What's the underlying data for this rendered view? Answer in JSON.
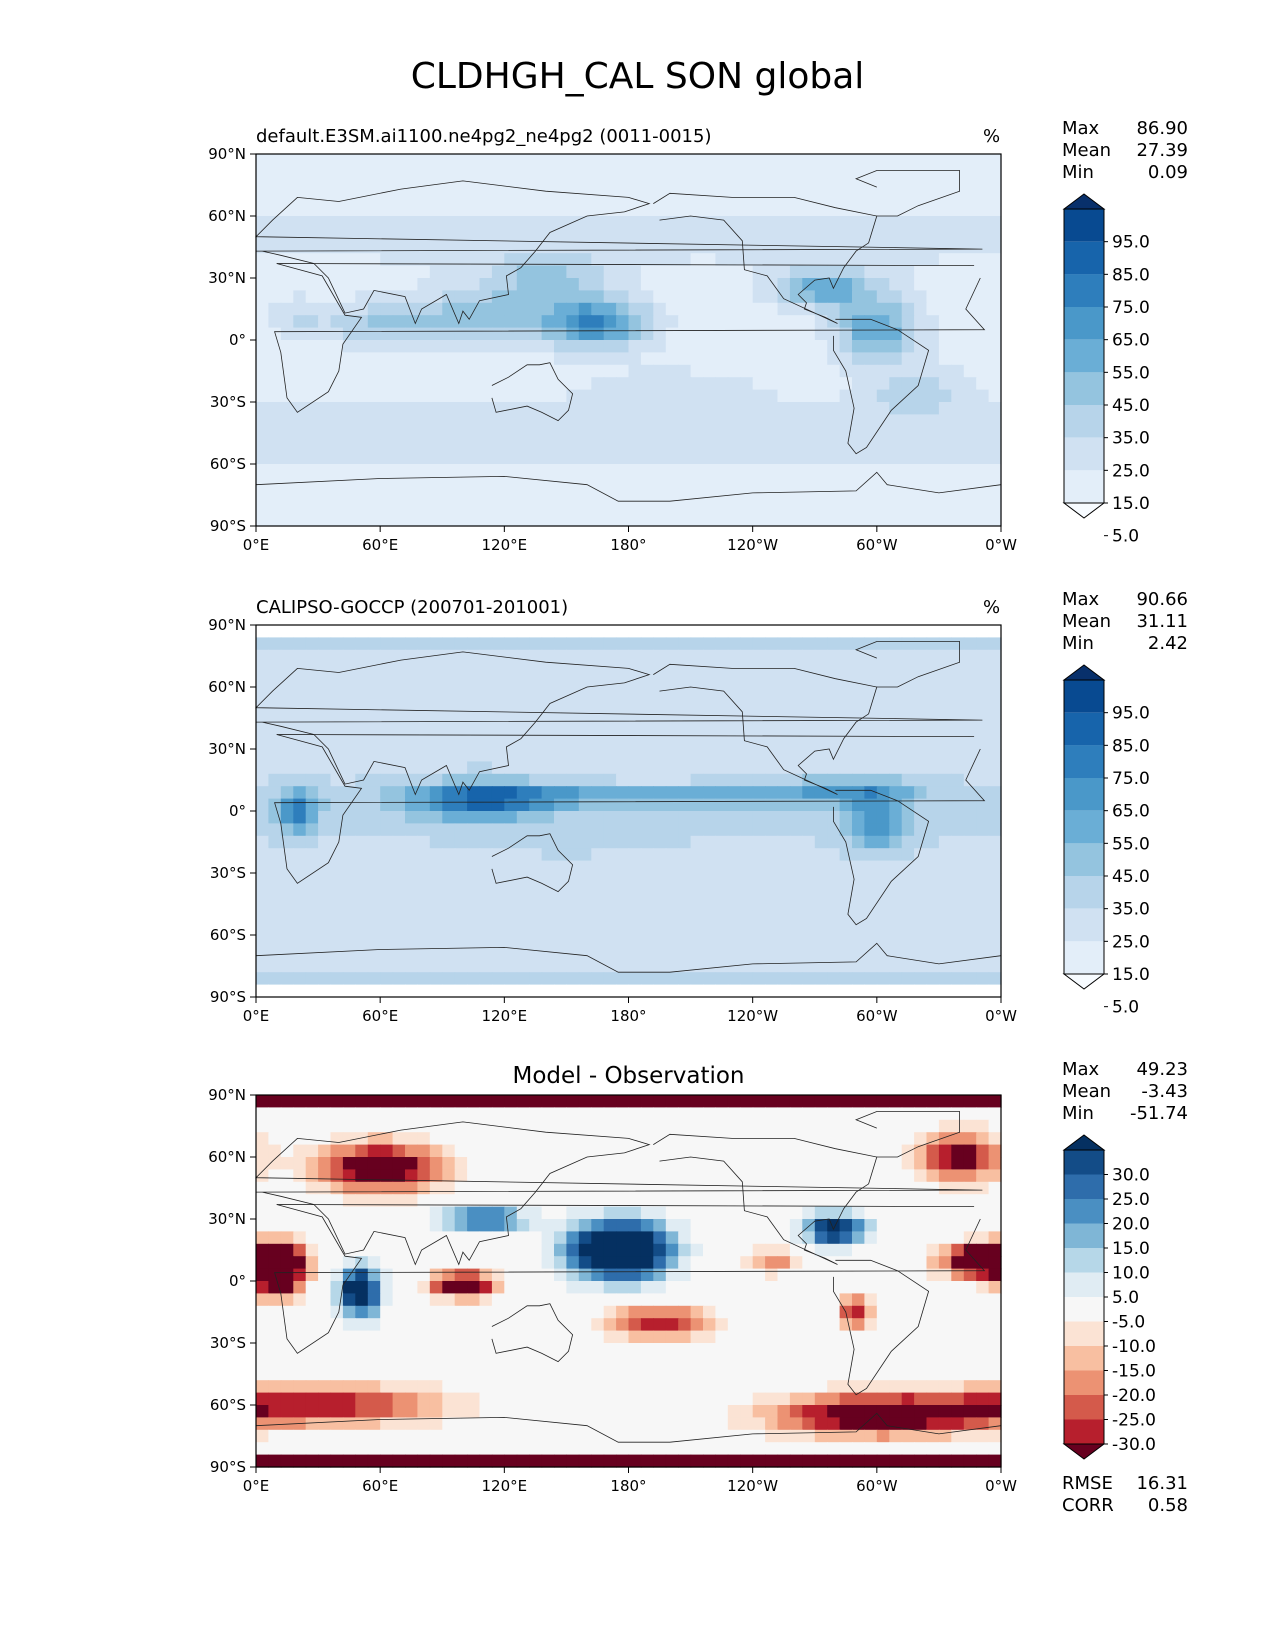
{
  "figure_title": "CLDHGH_CAL SON global",
  "chart_data": [
    {
      "type": "heatmap",
      "title": "default.E3SM.ai1100.ne4pg2_ne4pg2 (0011-0015)",
      "units": "%",
      "x_ticks": [
        "0°E",
        "60°E",
        "120°E",
        "180°",
        "120°W",
        "60°W",
        "0°W"
      ],
      "y_ticks": [
        "90°N",
        "60°N",
        "30°N",
        "0°",
        "30°S",
        "60°S",
        "90°S"
      ],
      "xlim": [
        0,
        360
      ],
      "ylim": [
        -90,
        90
      ],
      "colorbar": {
        "labels": [
          "95.0",
          "85.0",
          "75.0",
          "65.0",
          "55.0",
          "45.0",
          "35.0",
          "25.0",
          "15.0",
          "5.0"
        ],
        "colors": [
          "#08306b",
          "#084a91",
          "#1764ab",
          "#2e7ebc",
          "#4a98c9",
          "#6aaed6",
          "#94c4df",
          "#b7d4ea",
          "#d0e1f2",
          "#e3eef9",
          "#f7fbff"
        ],
        "extend": "both"
      },
      "stats": {
        "Max": "86.90",
        "Mean": "27.39",
        "Min": "0.09"
      }
    },
    {
      "type": "heatmap",
      "title": "CALIPSO-GOCCP (200701-201001)",
      "units": "%",
      "x_ticks": [
        "0°E",
        "60°E",
        "120°E",
        "180°",
        "120°W",
        "60°W",
        "0°W"
      ],
      "y_ticks": [
        "90°N",
        "60°N",
        "30°N",
        "0°",
        "30°S",
        "60°S",
        "90°S"
      ],
      "xlim": [
        0,
        360
      ],
      "ylim": [
        -90,
        90
      ],
      "colorbar": {
        "labels": [
          "95.0",
          "85.0",
          "75.0",
          "65.0",
          "55.0",
          "45.0",
          "35.0",
          "25.0",
          "15.0",
          "5.0"
        ],
        "colors": [
          "#08306b",
          "#084a91",
          "#1764ab",
          "#2e7ebc",
          "#4a98c9",
          "#6aaed6",
          "#94c4df",
          "#b7d4ea",
          "#d0e1f2",
          "#e3eef9",
          "#f7fbff"
        ],
        "extend": "both"
      },
      "stats": {
        "Max": "90.66",
        "Mean": "31.11",
        "Min": "2.42"
      }
    },
    {
      "type": "heatmap",
      "title": "Model - Observation",
      "units": "",
      "x_ticks": [
        "0°E",
        "60°E",
        "120°E",
        "180°",
        "120°W",
        "60°W",
        "0°W"
      ],
      "y_ticks": [
        "90°N",
        "60°N",
        "30°N",
        "0°",
        "30°S",
        "60°S",
        "90°S"
      ],
      "xlim": [
        0,
        360
      ],
      "ylim": [
        -90,
        90
      ],
      "colorbar": {
        "labels": [
          "30.0",
          "25.0",
          "20.0",
          "15.0",
          "10.0",
          "5.0",
          "-5.0",
          "-10.0",
          "-15.0",
          "-20.0",
          "-25.0",
          "-30.0"
        ],
        "colors": [
          "#053061",
          "#134c87",
          "#2e6dab",
          "#4a8fc2",
          "#7fb6d6",
          "#b6d7e8",
          "#e0ecf3",
          "#f7f7f7",
          "#fbe3d4",
          "#f8bfa1",
          "#ec9273",
          "#d45a4b",
          "#b71f2d",
          "#67001f"
        ],
        "extend": "both"
      },
      "stats": {
        "Max": "49.23",
        "Mean": "-3.43",
        "Min": "-51.74"
      },
      "metrics": {
        "RMSE": "16.31",
        "CORR": "0.58"
      }
    }
  ]
}
